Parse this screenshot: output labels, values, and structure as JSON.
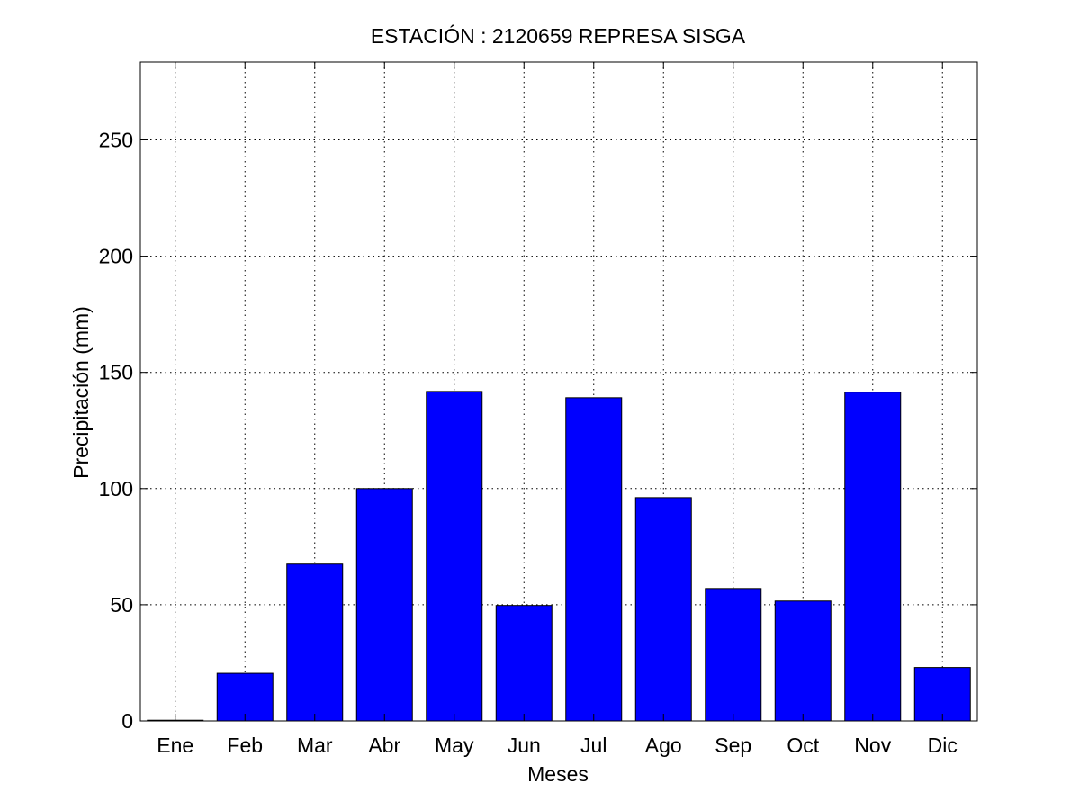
{
  "chart_data": {
    "type": "bar",
    "title": "ESTACIÓN :  2120659  REPRESA SISGA",
    "xlabel": "Meses",
    "ylabel": "Precipitación (mm)",
    "categories": [
      "Ene",
      "Feb",
      "Mar",
      "Abr",
      "May",
      "Jun",
      "Jul",
      "Ago",
      "Sep",
      "Oct",
      "Nov",
      "Dic"
    ],
    "values": [
      0.3,
      20.5,
      67.5,
      100,
      141.8,
      49.7,
      139.1,
      96.1,
      57,
      51.6,
      141.5,
      23
    ],
    "ylim": [
      0,
      283.5
    ],
    "yticks": [
      "0",
      "50",
      "100",
      "150",
      "200",
      "250"
    ],
    "grid": true,
    "bar_color": "#0000ff"
  }
}
